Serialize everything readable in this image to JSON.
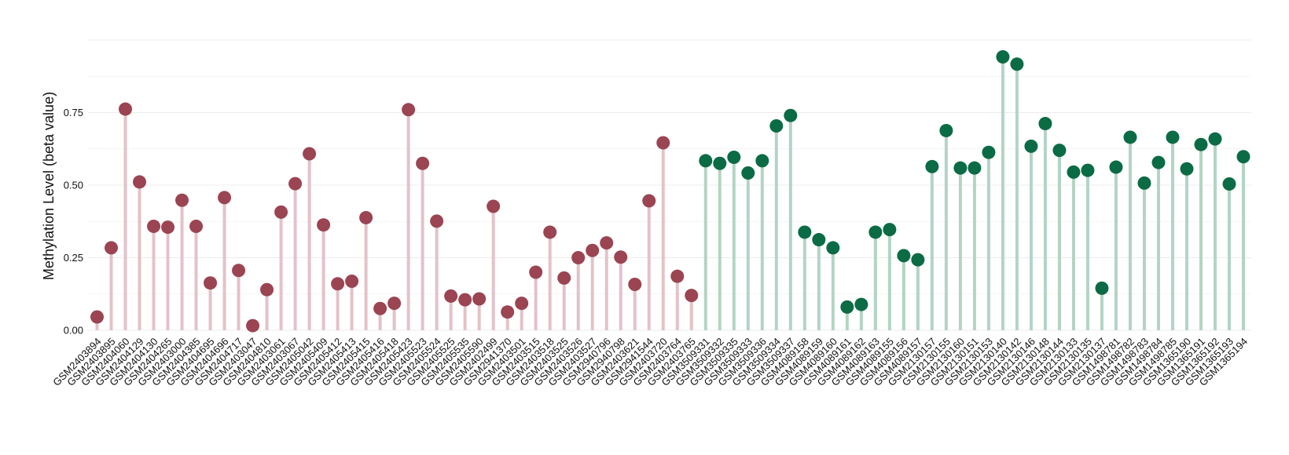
{
  "chart_data": {
    "type": "lollipop",
    "title": "",
    "xlabel": "",
    "ylabel": "Methylation Level (beta value)",
    "ylim": [
      0,
      1.0
    ],
    "yticks": [
      "0.00",
      "0.25",
      "0.50",
      "0.75"
    ],
    "ytick_values": [
      0,
      0.25,
      0.5,
      0.75
    ],
    "grid": true,
    "legend": "none",
    "colors": {
      "group1_point": "#9b4452",
      "group1_stem": "#e3c2c9",
      "group2_point": "#0b6b45",
      "group2_stem": "#b3d4c5",
      "grid": "#ececec"
    },
    "categories": [
      "GSM2403894",
      "GSM2403895",
      "GSM2404060",
      "GSM2404129",
      "GSM2404130",
      "GSM2404265",
      "GSM2403000",
      "GSM2404385",
      "GSM2404695",
      "GSM2404696",
      "GSM2404717",
      "GSM2403047",
      "GSM2404810",
      "GSM2403061",
      "GSM2403067",
      "GSM2405042",
      "GSM2405409",
      "GSM2405412",
      "GSM2405413",
      "GSM2405415",
      "GSM2405416",
      "GSM2405418",
      "GSM2405423",
      "GSM2405523",
      "GSM2405524",
      "GSM2405525",
      "GSM2405535",
      "GSM2405590",
      "GSM2402499",
      "GSM2941370",
      "GSM2403501",
      "GSM2403515",
      "GSM2403518",
      "GSM2403525",
      "GSM2403526",
      "GSM2403527",
      "GSM2940796",
      "GSM2940798",
      "GSM2403621",
      "GSM2941544",
      "GSM2403720",
      "GSM2403764",
      "GSM2403765",
      "GSM3509331",
      "GSM3509332",
      "GSM3509335",
      "GSM3509333",
      "GSM3509336",
      "GSM3509334",
      "GSM3509337",
      "GSM4089158",
      "GSM4089159",
      "GSM4089160",
      "GSM4089161",
      "GSM4089162",
      "GSM4089163",
      "GSM4089155",
      "GSM4089156",
      "GSM4089157",
      "GSM2130157",
      "GSM2130155",
      "GSM2130160",
      "GSM2130151",
      "GSM2130153",
      "GSM2130140",
      "GSM2130142",
      "GSM2130146",
      "GSM2130148",
      "GSM2130144",
      "GSM2130133",
      "GSM2130135",
      "GSM2130137",
      "GSM1498781",
      "GSM1498782",
      "GSM1498783",
      "GSM1498784",
      "GSM1498785",
      "GSM1365190",
      "GSM1365191",
      "GSM1365192",
      "GSM1365193",
      "GSM1365194"
    ],
    "groups": [
      {
        "color_key": "group1",
        "count": 43
      },
      {
        "color_key": "group2",
        "count": 39
      }
    ],
    "values": [
      0.046,
      0.284,
      0.762,
      0.511,
      0.358,
      0.355,
      0.448,
      0.358,
      0.163,
      0.457,
      0.206,
      0.016,
      0.14,
      0.407,
      0.505,
      0.608,
      0.363,
      0.16,
      0.169,
      0.388,
      0.075,
      0.093,
      0.76,
      0.575,
      0.376,
      0.118,
      0.105,
      0.108,
      0.427,
      0.063,
      0.093,
      0.2,
      0.338,
      0.18,
      0.25,
      0.275,
      0.301,
      0.252,
      0.158,
      0.446,
      0.646,
      0.186,
      0.12,
      0.584,
      0.575,
      0.596,
      0.542,
      0.584,
      0.704,
      0.74,
      0.338,
      0.312,
      0.284,
      0.08,
      0.089,
      0.338,
      0.347,
      0.257,
      0.243,
      0.564,
      0.688,
      0.559,
      0.559,
      0.613,
      0.942,
      0.917,
      0.634,
      0.712,
      0.62,
      0.545,
      0.551,
      0.145,
      0.562,
      0.665,
      0.507,
      0.578,
      0.665,
      0.556,
      0.64,
      0.659,
      0.504,
      0.598
    ]
  }
}
